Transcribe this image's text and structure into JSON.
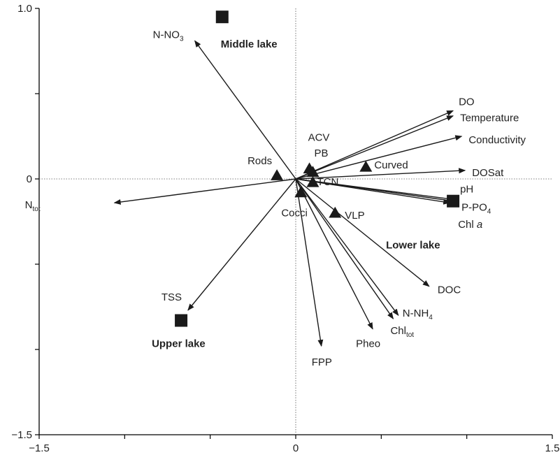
{
  "chart_data": {
    "type": "scatter",
    "title": "",
    "xlabel": "",
    "ylabel": "",
    "xlim": [
      -1.5,
      1.5
    ],
    "ylim": [
      -1.5,
      1.0
    ],
    "x_tick_labels": [
      "−1.5",
      "0",
      "1.5"
    ],
    "y_tick_labels": [
      "1.0",
      "0",
      "−1.5"
    ],
    "colors": {
      "axis": "#000000",
      "mark": "#1a1a1a"
    },
    "environmental_vectors": [
      {
        "name": "N-NO",
        "sub": "3",
        "x": -0.59,
        "y": 0.81
      },
      {
        "name": "DO",
        "x": 0.92,
        "y": 0.4
      },
      {
        "name": "Temperature",
        "x": 0.92,
        "y": 0.37
      },
      {
        "name": "Conductivity",
        "x": 0.97,
        "y": 0.25
      },
      {
        "name": "DOSat",
        "x": 0.99,
        "y": 0.05
      },
      {
        "name": "pH",
        "x": 0.92,
        "y": -0.12
      },
      {
        "name": "P-PO",
        "sub": "4",
        "x": 0.92,
        "y": -0.13
      },
      {
        "name": "Chl ",
        "italic": "a",
        "x": 0.9,
        "y": -0.14
      },
      {
        "name": "DOC",
        "x": 0.78,
        "y": -0.63
      },
      {
        "name": "N-NH",
        "sub": "4",
        "x": 0.6,
        "y": -0.8
      },
      {
        "name": "Chl",
        "sub": "tot",
        "x": 0.57,
        "y": -0.82
      },
      {
        "name": "Pheo",
        "x": 0.45,
        "y": -0.88
      },
      {
        "name": "FPP",
        "x": 0.15,
        "y": -0.98
      },
      {
        "name": "N",
        "sub": "tot",
        "x": -1.06,
        "y": -0.14
      },
      {
        "name": "TSS",
        "x": -0.63,
        "y": -0.77
      }
    ],
    "species_points": [
      {
        "name": "ACV",
        "x": 0.08,
        "y": 0.06
      },
      {
        "name": "PB",
        "x": 0.1,
        "y": 0.04
      },
      {
        "name": "Rods",
        "x": -0.11,
        "y": 0.02
      },
      {
        "name": "Curved",
        "x": 0.41,
        "y": 0.07
      },
      {
        "name": "TCN",
        "x": 0.1,
        "y": -0.02
      },
      {
        "name": "Cocci",
        "x": 0.03,
        "y": -0.08
      },
      {
        "name": "VLP",
        "x": 0.23,
        "y": -0.2
      }
    ],
    "sites": [
      {
        "name": "Middle lake",
        "x": -0.43,
        "y": 0.95
      },
      {
        "name": "Lower lake",
        "x": 0.92,
        "y": -0.13
      },
      {
        "name": "Upper lake",
        "x": -0.67,
        "y": -0.83
      }
    ]
  }
}
